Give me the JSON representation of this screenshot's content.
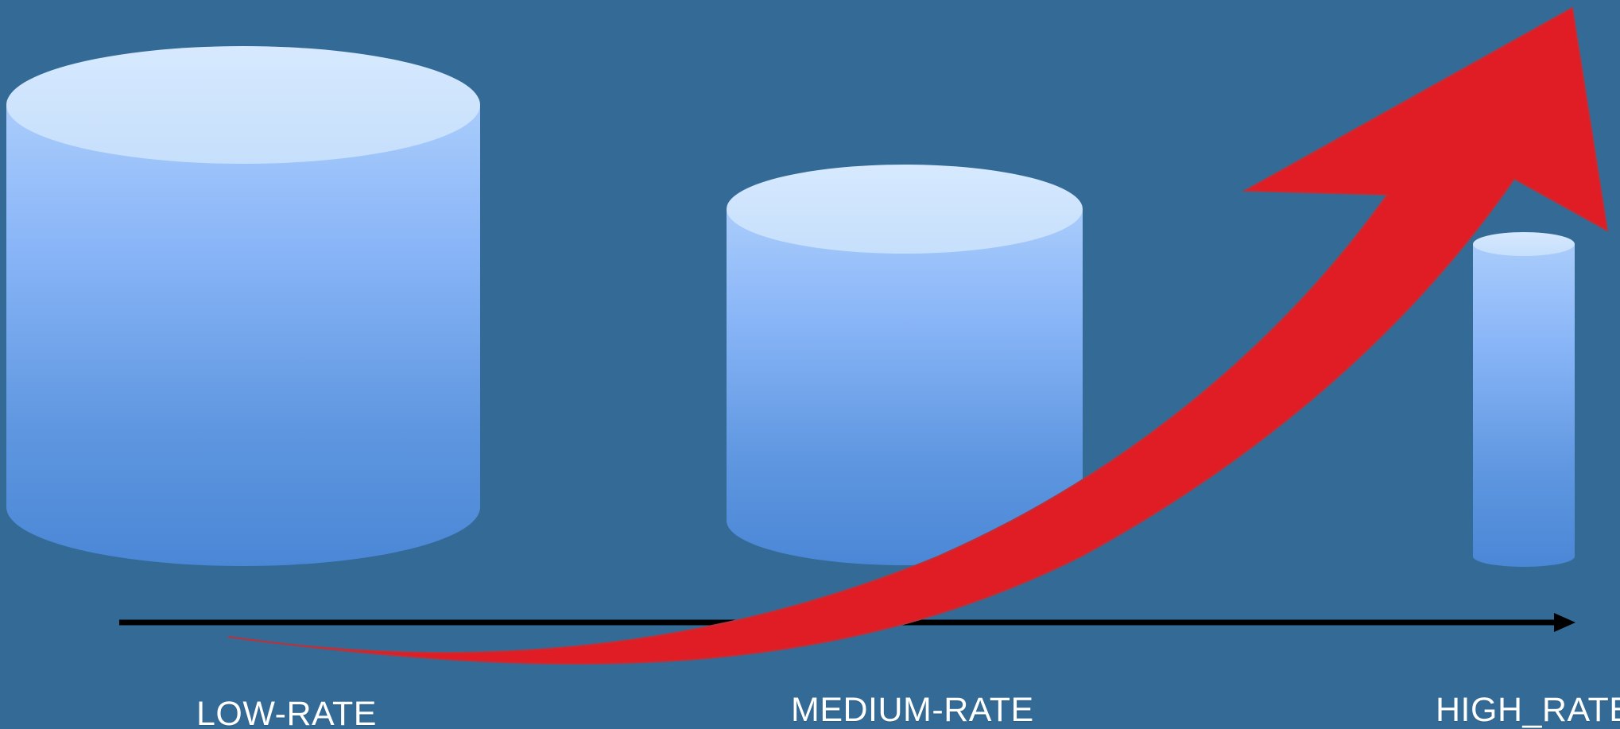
{
  "labels": {
    "low": "LOW-RATE",
    "medium": "MEDIUM-RATE",
    "high": "HIGH_RATE"
  },
  "colors": {
    "background": "#336b96",
    "cylinder_top": "#cfe5fd",
    "cylinder_light": "#9fc4f9",
    "cylinder_mid": "#8ab6f8",
    "cylinder_dark": "#4a87d6",
    "arrow": "#e01c25",
    "axis": "#000000"
  },
  "icons": {
    "axis_arrow": "right-arrow-icon",
    "trend_arrow": "upward-curved-arrow-icon"
  }
}
